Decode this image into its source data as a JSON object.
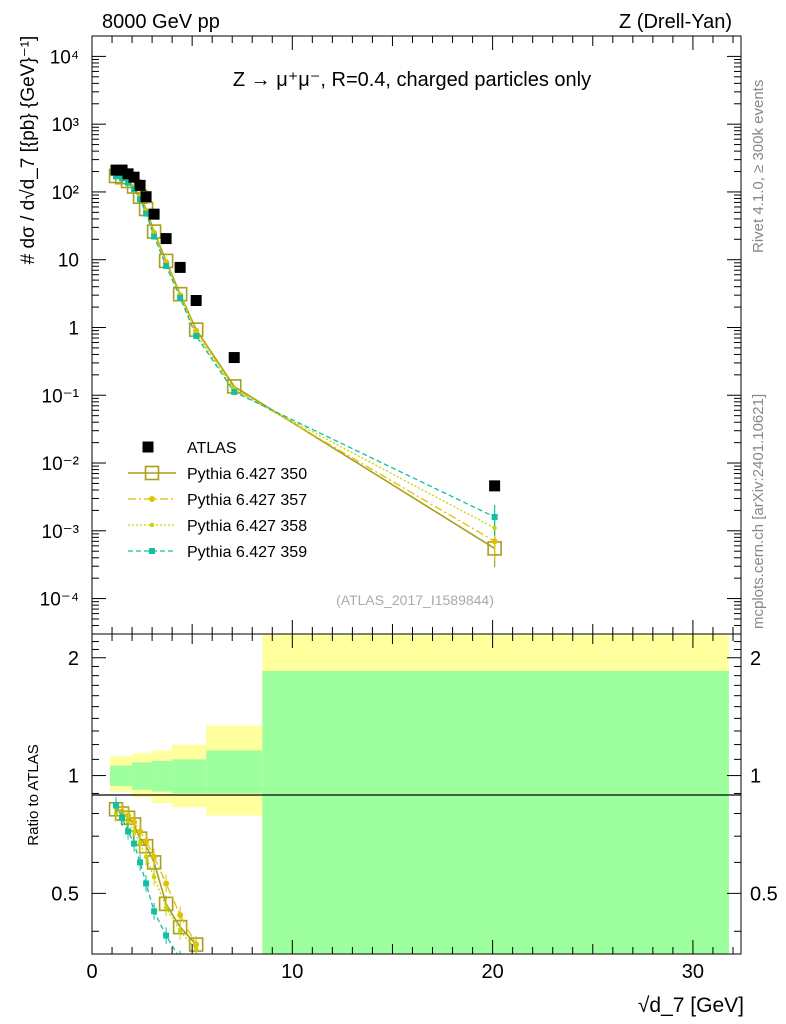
{
  "header": {
    "left": "8000 GeV pp",
    "right": "Z (Drell-Yan)"
  },
  "side": {
    "rivet": "Rivet 4.1.0, ≥ 300k events",
    "mcplots": "mcplots.cern.ch [arXiv:2401.10621]"
  },
  "colors": {
    "data": "#000000",
    "p350": "#a89f1e",
    "p357": "#e0c000",
    "p358": "#c8d400",
    "p359": "#10c0a0",
    "band_stat": "#9eff9e",
    "band_total": "#ffff9e"
  },
  "chart_data": [
    {
      "type": "scatter",
      "name": "main",
      "title": "Z → μ⁺μ⁻, R=0.4, charged particles only",
      "subtitle": "(ATLAS_2017_I1589844)",
      "xlabel": "√d_7 [GeV]",
      "ylabel": "# dσ / d√d_7 [{pb} {GeV}⁻¹]",
      "yscale": "log",
      "xlim": [
        0,
        32.4
      ],
      "ylim": [
        3e-05,
        20000
      ],
      "y_tick_labels": [
        "10⁻⁴",
        "10⁻³",
        "10⁻²",
        "10⁻¹",
        "1",
        "10",
        "10²",
        "10³",
        "10⁴"
      ],
      "legend_position": "lower-left",
      "series": [
        {
          "name": "ATLAS",
          "key": "data",
          "x": [
            1.2,
            1.5,
            1.8,
            2.1,
            2.4,
            2.7,
            3.1,
            3.7,
            4.4,
            5.2,
            7.1,
            20.1
          ],
          "y": [
            210,
            210,
            185,
            165,
            125,
            85,
            47,
            20.5,
            7.7,
            2.5,
            0.36,
            0.0046
          ]
        },
        {
          "name": "Pythia 6.427 350",
          "key": "p350",
          "x": [
            1.2,
            1.5,
            1.8,
            2.1,
            2.4,
            2.7,
            3.1,
            3.7,
            4.4,
            5.2,
            7.1,
            20.1
          ],
          "y": [
            172,
            165,
            145,
            120,
            85,
            56,
            26,
            9.6,
            3.1,
            0.93,
            0.135,
            0.00055
          ]
        },
        {
          "name": "Pythia 6.427 357",
          "key": "p357",
          "x": [
            1.2,
            1.5,
            1.8,
            2.1,
            2.4,
            2.7,
            3.1,
            3.7,
            4.4,
            5.2,
            7.1,
            20.1
          ],
          "y": [
            168,
            163,
            142,
            118,
            83,
            53,
            25,
            9.2,
            3.0,
            0.9,
            0.125,
            0.0007
          ]
        },
        {
          "name": "Pythia 6.427 358",
          "key": "p358",
          "x": [
            1.2,
            1.5,
            1.8,
            2.1,
            2.4,
            2.7,
            3.1,
            3.7,
            4.4,
            5.2,
            7.1,
            20.1
          ],
          "y": [
            165,
            158,
            138,
            112,
            79,
            50,
            23,
            8.6,
            2.85,
            0.82,
            0.118,
            0.0011
          ]
        },
        {
          "name": "Pythia 6.427 359",
          "key": "p359",
          "x": [
            1.2,
            1.5,
            1.8,
            2.1,
            2.4,
            2.7,
            3.1,
            3.7,
            4.4,
            5.2,
            7.1,
            20.1
          ],
          "y": [
            170,
            160,
            137,
            110,
            78,
            48,
            22,
            8.1,
            2.75,
            0.75,
            0.112,
            0.0016
          ]
        }
      ]
    },
    {
      "type": "line",
      "name": "ratio",
      "ylabel": "Ratio to ATLAS",
      "xlabel": "√d_7 [GeV]",
      "xlim": [
        0,
        32.4
      ],
      "ylim": [
        0.35,
        2.3
      ],
      "x_ticks": [
        0,
        10,
        20,
        30
      ],
      "y_ticks": [
        0.5,
        1,
        2
      ],
      "reference": 1,
      "bands": [
        {
          "x0": 0.9,
          "x1": 2.0,
          "stat_lo": 0.94,
          "stat_hi": 1.06,
          "tot_lo": 0.91,
          "tot_hi": 1.12
        },
        {
          "x0": 2.0,
          "x1": 3.0,
          "stat_lo": 0.92,
          "stat_hi": 1.08,
          "tot_lo": 0.88,
          "tot_hi": 1.14
        },
        {
          "x0": 3.0,
          "x1": 4.0,
          "stat_lo": 0.91,
          "stat_hi": 1.09,
          "tot_lo": 0.85,
          "tot_hi": 1.16
        },
        {
          "x0": 4.0,
          "x1": 5.7,
          "stat_lo": 0.9,
          "stat_hi": 1.1,
          "tot_lo": 0.83,
          "tot_hi": 1.2
        },
        {
          "x0": 5.7,
          "x1": 8.5,
          "stat_lo": 0.9,
          "stat_hi": 1.16,
          "tot_lo": 0.79,
          "tot_hi": 1.34
        },
        {
          "x0": 8.5,
          "x1": 31.8,
          "stat_lo": 0.0,
          "stat_hi": 1.85,
          "tot_lo": 0.0,
          "tot_hi": 2.35
        }
      ],
      "series": [
        {
          "name": "Pythia 6.427 350",
          "key": "p350",
          "x": [
            1.2,
            1.5,
            1.8,
            2.1,
            2.4,
            2.7,
            3.1,
            3.7,
            4.4,
            5.2
          ],
          "y": [
            0.82,
            0.8,
            0.78,
            0.75,
            0.69,
            0.66,
            0.6,
            0.47,
            0.41,
            0.37
          ]
        },
        {
          "name": "Pythia 6.427 357",
          "key": "p357",
          "x": [
            1.2,
            1.5,
            1.8,
            2.1,
            2.4,
            2.7,
            3.1,
            3.7,
            4.4,
            5.2
          ],
          "y": [
            0.83,
            0.81,
            0.79,
            0.76,
            0.72,
            0.68,
            0.62,
            0.53,
            0.44,
            0.37
          ]
        },
        {
          "name": "Pythia 6.427 358",
          "key": "p358",
          "x": [
            1.2,
            1.5,
            1.8,
            2.1,
            2.4,
            2.7,
            3.1,
            3.7,
            4.4,
            5.2
          ],
          "y": [
            0.8,
            0.78,
            0.76,
            0.72,
            0.67,
            0.62,
            0.55,
            0.46,
            0.4,
            0.36
          ]
        },
        {
          "name": "Pythia 6.427 359",
          "key": "p359",
          "x": [
            1.2,
            1.5,
            1.8,
            2.1,
            2.4,
            2.7,
            3.1,
            3.7,
            4.4
          ],
          "y": [
            0.84,
            0.78,
            0.72,
            0.67,
            0.6,
            0.53,
            0.45,
            0.39,
            0.34
          ]
        }
      ]
    }
  ]
}
